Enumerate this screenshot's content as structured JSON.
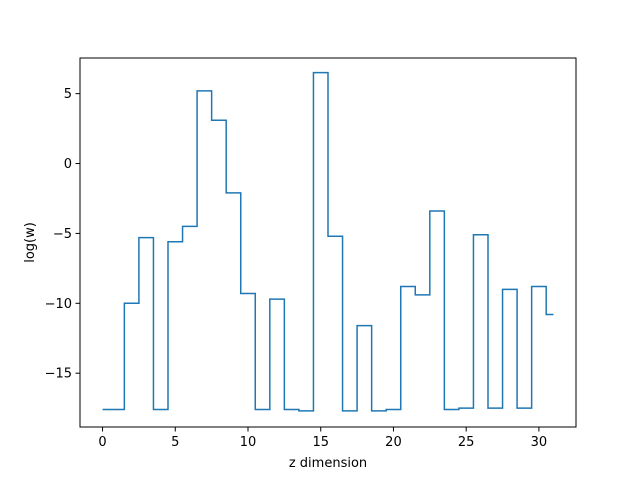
{
  "chart_data": {
    "type": "line",
    "style": "step",
    "title": "",
    "xlabel": "z dimension",
    "ylabel": "log(w)",
    "xlim": [
      -1.55,
      32.55
    ],
    "ylim": [
      -18.85,
      7.55
    ],
    "xticks": [
      0,
      5,
      10,
      15,
      20,
      25,
      30
    ],
    "xtick_labels": [
      "0",
      "5",
      "10",
      "15",
      "20",
      "25",
      "30"
    ],
    "yticks": [
      -15,
      -10,
      -5,
      0,
      5
    ],
    "ytick_labels": [
      "−15",
      "−10",
      "−5",
      "0",
      "5"
    ],
    "grid": false,
    "series": [
      {
        "color": "#1f77b4",
        "x": [
          0,
          1,
          2,
          3,
          4,
          5,
          6,
          7,
          8,
          9,
          10,
          11,
          12,
          13,
          14,
          15,
          16,
          17,
          18,
          19,
          20,
          21,
          22,
          23,
          24,
          25,
          26,
          27,
          28,
          29,
          30,
          31
        ],
        "values": [
          -17.6,
          -17.6,
          -10.0,
          -5.3,
          -17.6,
          -5.6,
          -4.5,
          5.2,
          3.1,
          -2.1,
          -9.3,
          -17.6,
          -9.7,
          -17.6,
          -17.7,
          6.5,
          -5.2,
          -17.7,
          -11.6,
          -17.7,
          -17.6,
          -8.8,
          -9.4,
          -3.4,
          -17.6,
          -17.5,
          -5.1,
          -17.5,
          -9.0,
          -17.5,
          -8.8,
          -10.8
        ]
      }
    ]
  }
}
